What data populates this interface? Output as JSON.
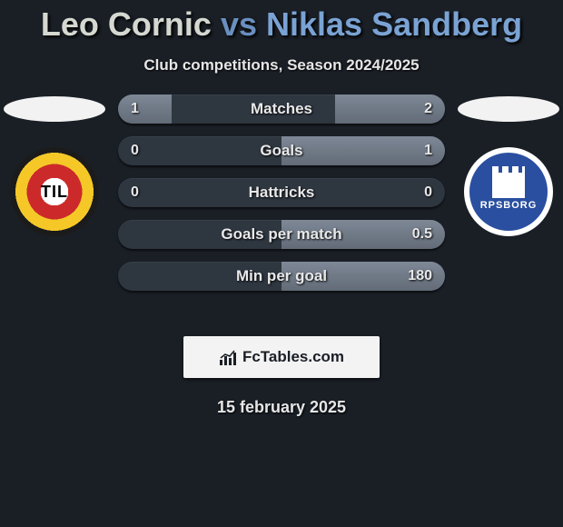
{
  "title": {
    "player1": "Leo Cornic",
    "vs": "vs",
    "player2": "Niklas Sandberg"
  },
  "subtitle": "Club competitions, Season 2024/2025",
  "date": "15 february 2025",
  "brand": "FcTables.com",
  "clubs": {
    "left_label": "TIL",
    "right_label": "RPSBORG"
  },
  "colors": {
    "background": "#1a1f26",
    "bar_track": "#2e3640",
    "bar_fill": "#7e8896",
    "text": "#e8e8e8",
    "p1_color": "#d4d8d0",
    "vs_color": "#6a8fbf",
    "p2_color": "#7aa3d4",
    "brand_bg": "#f3f3f3",
    "crest_left_ring1": "#cc2a2a",
    "crest_left_ring2": "#f5c828",
    "crest_right_bg": "#2a4fa0"
  },
  "stats": [
    {
      "label": "Matches",
      "left_val": "1",
      "right_val": "2",
      "left_pct": 33,
      "right_pct": 67
    },
    {
      "label": "Goals",
      "left_val": "0",
      "right_val": "1",
      "left_pct": 0,
      "right_pct": 100
    },
    {
      "label": "Hattricks",
      "left_val": "0",
      "right_val": "0",
      "left_pct": 0,
      "right_pct": 0
    },
    {
      "label": "Goals per match",
      "left_val": "",
      "right_val": "0.5",
      "left_pct": 0,
      "right_pct": 100
    },
    {
      "label": "Min per goal",
      "left_val": "",
      "right_val": "180",
      "left_pct": 0,
      "right_pct": 100
    }
  ]
}
